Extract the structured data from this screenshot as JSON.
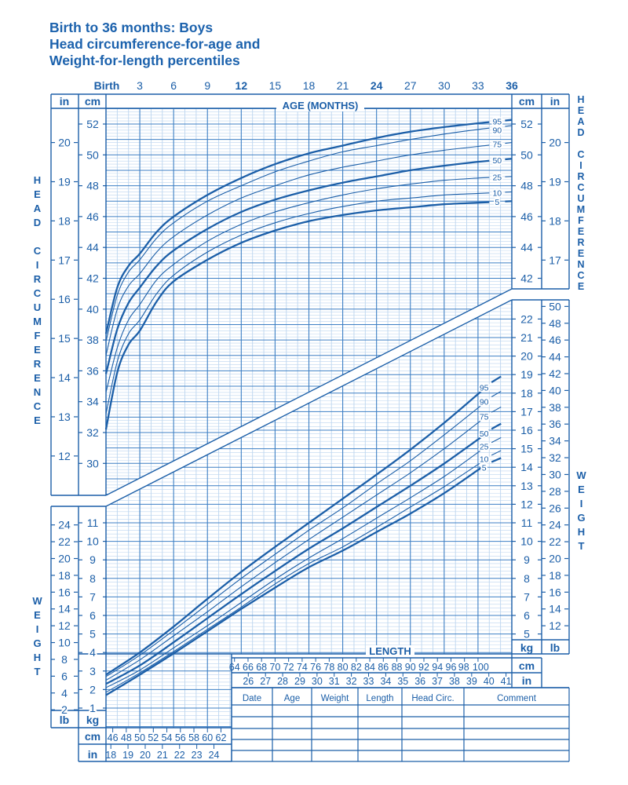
{
  "title": {
    "line1": "Birth to 36 months: Boys",
    "line2": "Head circumference-for-age and",
    "line3": "Weight-for-length percentiles"
  },
  "colors": {
    "ink": "#1c5fa8",
    "grid_major": "#3d7fc4",
    "grid_minor": "#bcd5ef"
  },
  "side_labels": {
    "head_left": "HEAD CIRCUMFERENCE",
    "head_right": "HEAD CIRCUMFERENCE",
    "weight_left": "WEIGHT",
    "weight_right": "WEIGHT"
  },
  "units": {
    "in": "in",
    "cm": "cm",
    "kg": "kg",
    "lb": "lb"
  },
  "chart_data": [
    {
      "type": "line",
      "xlabel": "AGE (MONTHS)",
      "ylabel": "HEAD CIRCUMFERENCE",
      "xlim": [
        0,
        36
      ],
      "ylim_cm": [
        28,
        54
      ],
      "grid": true,
      "x_tick_labels": [
        "Birth",
        "3",
        "6",
        "9",
        "12",
        "15",
        "18",
        "21",
        "24",
        "27",
        "30",
        "33",
        "36"
      ],
      "x_tick_values": [
        0,
        3,
        6,
        9,
        12,
        15,
        18,
        21,
        24,
        27,
        30,
        33,
        36
      ],
      "y_ticks_cm_left": [
        30,
        32,
        34,
        36,
        38,
        40,
        42,
        44,
        46,
        48,
        50,
        52
      ],
      "y_ticks_in_left": [
        12,
        13,
        14,
        15,
        16,
        17,
        18,
        19,
        20
      ],
      "y_ticks_cm_right": [
        42,
        44,
        46,
        48,
        50,
        52
      ],
      "y_ticks_in_right": [
        17,
        18,
        19,
        20
      ],
      "x": [
        0,
        1,
        2,
        3,
        4.5,
        6,
        9,
        12,
        15,
        18,
        21,
        24,
        27,
        30,
        33,
        36
      ],
      "series": [
        {
          "name": "95",
          "values": [
            38.4,
            41.4,
            42.8,
            43.6,
            45.0,
            46.0,
            47.4,
            48.5,
            49.4,
            50.1,
            50.6,
            51.1,
            51.5,
            51.8,
            52.05,
            52.27
          ]
        },
        {
          "name": "90",
          "values": [
            37.9,
            40.9,
            42.4,
            43.2,
            44.6,
            45.6,
            47.0,
            48.0,
            48.9,
            49.6,
            50.2,
            50.6,
            51.0,
            51.35,
            51.65,
            51.9
          ]
        },
        {
          "name": "75",
          "values": [
            37.0,
            40.0,
            41.5,
            42.3,
            43.7,
            44.7,
            46.1,
            47.2,
            48.0,
            48.7,
            49.2,
            49.6,
            50.0,
            50.3,
            50.55,
            50.8
          ]
        },
        {
          "name": "50",
          "values": [
            35.8,
            38.7,
            40.4,
            41.4,
            42.8,
            43.8,
            45.2,
            46.3,
            47.1,
            47.7,
            48.2,
            48.6,
            49.0,
            49.3,
            49.55,
            49.75
          ]
        },
        {
          "name": "25",
          "values": [
            34.6,
            37.5,
            39.3,
            40.3,
            41.9,
            42.9,
            44.4,
            45.5,
            46.3,
            46.9,
            47.4,
            47.8,
            48.1,
            48.35,
            48.5,
            48.6
          ]
        },
        {
          "name": "10",
          "values": [
            33.2,
            36.6,
            38.4,
            39.3,
            41.0,
            42.2,
            43.7,
            44.8,
            45.6,
            46.2,
            46.65,
            47.0,
            47.2,
            47.4,
            47.5,
            47.6
          ]
        },
        {
          "name": "5",
          "values": [
            32.2,
            35.9,
            37.7,
            38.6,
            40.5,
            41.8,
            43.2,
            44.3,
            45.1,
            45.7,
            46.1,
            46.4,
            46.6,
            46.8,
            46.9,
            47.0
          ]
        }
      ]
    },
    {
      "type": "line",
      "xlabel": "LENGTH",
      "ylabel": "WEIGHT",
      "xlim_cm": [
        45,
        105
      ],
      "ylim_kg": [
        0,
        23
      ],
      "grid": true,
      "x_ticks_cm_bottom": [
        46,
        48,
        50,
        52,
        54,
        56,
        58,
        60,
        62
      ],
      "x_ticks_in_bottom": [
        18,
        19,
        20,
        21,
        22,
        23,
        24
      ],
      "x_ticks_cm_box": [
        64,
        66,
        68,
        70,
        72,
        74,
        76,
        78,
        80,
        82,
        84,
        86,
        88,
        90,
        92,
        94,
        96,
        98,
        100
      ],
      "x_ticks_in_box": [
        26,
        27,
        28,
        29,
        30,
        31,
        32,
        33,
        34,
        35,
        36,
        37,
        38,
        39,
        40,
        41
      ],
      "y_ticks_kg_left": [
        1,
        2,
        3,
        4,
        5,
        6,
        7,
        8,
        9,
        10,
        11
      ],
      "y_ticks_lb_left": [
        2,
        4,
        6,
        8,
        10,
        12,
        14,
        16,
        18,
        20,
        22,
        24
      ],
      "y_ticks_kg_right": [
        5,
        6,
        7,
        8,
        9,
        10,
        11,
        12,
        13,
        14,
        15,
        16,
        17,
        18,
        19,
        20,
        21,
        22
      ],
      "y_ticks_lb_right": [
        12,
        14,
        16,
        18,
        20,
        22,
        24,
        26,
        28,
        30,
        32,
        34,
        36,
        38,
        40,
        42,
        44,
        46,
        48,
        50
      ],
      "x": [
        45,
        50,
        55,
        60,
        65,
        70,
        75,
        80,
        85,
        90,
        95,
        100,
        103
      ],
      "series": [
        {
          "name": "95",
          "values": [
            2.8,
            4.0,
            5.4,
            6.9,
            8.35,
            9.7,
            11.0,
            12.3,
            13.6,
            14.95,
            16.4,
            17.95,
            18.9
          ]
        },
        {
          "name": "90",
          "values": [
            2.7,
            3.85,
            5.2,
            6.6,
            8.0,
            9.3,
            10.6,
            11.8,
            13.1,
            14.35,
            15.75,
            17.2,
            18.1
          ]
        },
        {
          "name": "75",
          "values": [
            2.5,
            3.6,
            4.9,
            6.2,
            7.55,
            8.85,
            10.1,
            11.3,
            12.5,
            13.7,
            15.0,
            16.4,
            17.25
          ]
        },
        {
          "name": "50",
          "values": [
            2.3,
            3.3,
            4.55,
            5.85,
            7.15,
            8.4,
            9.6,
            10.7,
            11.85,
            13.0,
            14.2,
            15.5,
            16.35
          ]
        },
        {
          "name": "25",
          "values": [
            2.1,
            3.05,
            4.25,
            5.45,
            6.7,
            7.95,
            9.1,
            10.15,
            11.25,
            12.35,
            13.5,
            14.8,
            15.6
          ]
        },
        {
          "name": "10",
          "values": [
            1.85,
            2.9,
            4.05,
            5.25,
            6.45,
            7.7,
            8.8,
            9.7,
            10.75,
            11.85,
            12.95,
            14.15,
            14.9
          ]
        },
        {
          "name": "5",
          "values": [
            1.7,
            2.8,
            3.95,
            5.15,
            6.35,
            7.5,
            8.6,
            9.5,
            10.5,
            11.5,
            12.6,
            13.85,
            14.5
          ]
        }
      ]
    }
  ],
  "table": {
    "headers": [
      "Date",
      "Age",
      "Weight",
      "Length",
      "Head Circ.",
      "Comment"
    ],
    "rows": [
      [
        "",
        "",
        "",
        "",
        "",
        ""
      ],
      [
        "",
        "",
        "",
        "",
        "",
        ""
      ],
      [
        "",
        "",
        "",
        "",
        "",
        ""
      ],
      [
        "",
        "",
        "",
        "",
        "",
        ""
      ]
    ]
  }
}
